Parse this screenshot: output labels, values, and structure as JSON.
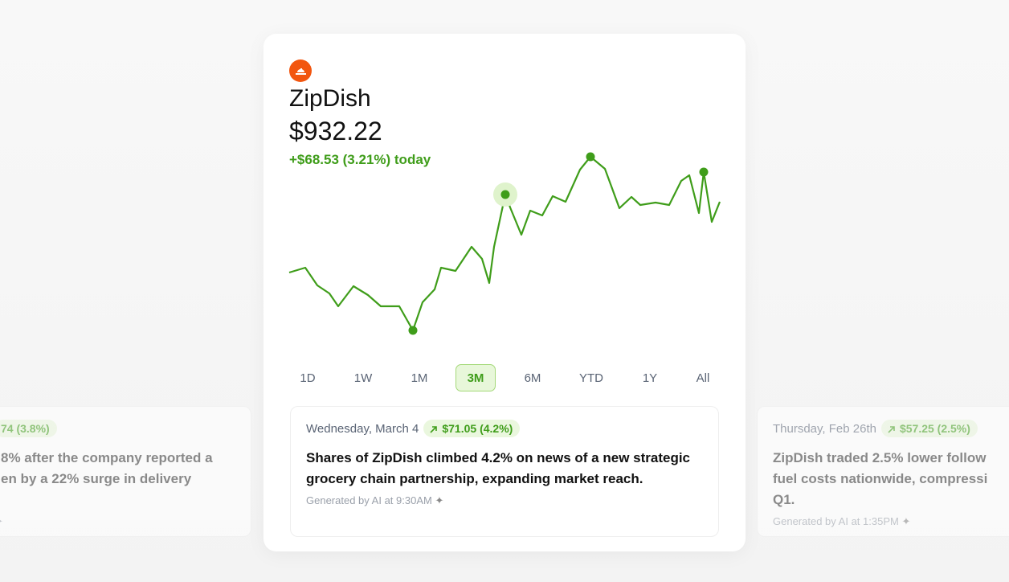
{
  "stock": {
    "name": "ZipDish",
    "price": "$932.22",
    "change": "+$68.53 (3.21%) today"
  },
  "chart_data": {
    "type": "line",
    "color": "#3f9d1a",
    "x": [
      0,
      20,
      35,
      50,
      61,
      80,
      98,
      114,
      137,
      154,
      166,
      181,
      189,
      207,
      227,
      240,
      249,
      255,
      269,
      275,
      289,
      300,
      315,
      328,
      344,
      362,
      375,
      393,
      411,
      426,
      437,
      456,
      473,
      488,
      498,
      510,
      516,
      526,
      536
    ],
    "values": [
      76,
      82,
      60,
      50,
      34,
      59,
      48,
      34,
      34,
      4,
      39,
      55,
      82,
      78,
      108,
      93,
      63,
      108,
      173,
      157,
      123,
      153,
      147,
      171,
      164,
      204,
      220,
      205,
      156,
      170,
      160,
      163,
      160,
      190,
      197,
      150,
      201,
      139,
      164
    ],
    "xlim": [
      0,
      536
    ],
    "ylim": [
      0,
      230
    ]
  },
  "range_tabs": {
    "items": [
      "1D",
      "1W",
      "1M",
      "3M",
      "6M",
      "YTD",
      "1Y",
      "All"
    ],
    "selected": 3
  },
  "news": [
    {
      "badge": "74 (3.8%)",
      "lines": [
        "8% after the company reported a",
        "en by a 22% surge in delivery"
      ]
    },
    {
      "date": "Wednesday, March 4",
      "badge": "$71.05 (4.2%)",
      "text": "Shares of ZipDish climbed 4.2% on news of a new strategic grocery chain partnership, expanding market reach.",
      "footer": "Generated by AI at 9:30AM"
    },
    {
      "date": "Thursday, Feb 26th",
      "badge": "$57.25 (2.5%)",
      "lines": [
        "ZipDish traded 2.5% lower follow",
        "fuel costs nationwide, compressi",
        "Q1."
      ],
      "footer": "Generated by AI at 1:35PM"
    }
  ]
}
